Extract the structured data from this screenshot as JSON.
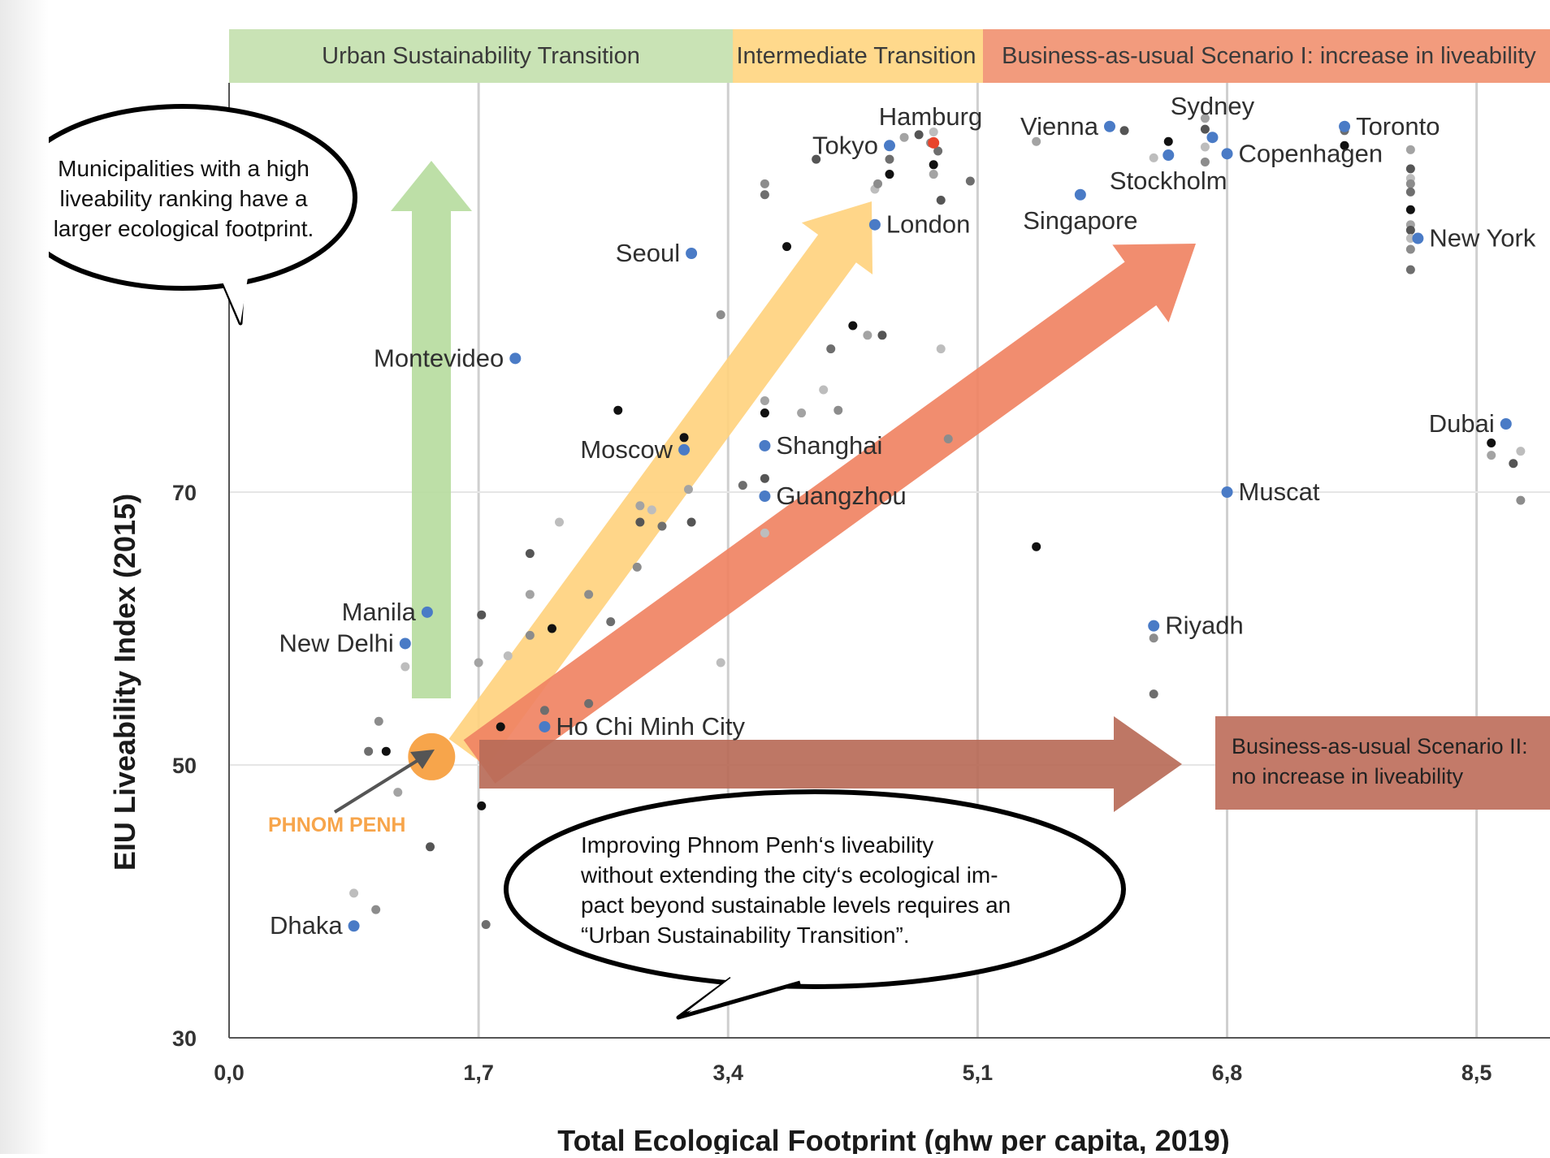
{
  "colors": {
    "transition_band": "#c9e3b5",
    "intermediate_band": "#ffd98c",
    "bau1_band": "#f29b7d",
    "bau2_band": "#c37a69",
    "green_arrow": "#b7dca0",
    "yellow_arrow": "#ffd37f",
    "orange_arrow": "#f08363",
    "brown_arrow": "#b96b58",
    "city_dot": "#4a7bc6",
    "hamburg": "#e8442b",
    "phnom_penh": "#f7a54b",
    "grid": "#cfcfcf"
  },
  "bands": {
    "transition": "Urban Sustainability Transition",
    "intermediate": "Intermediate Transition",
    "bau1": "Business-as-usual Scenario I: increase in liveability"
  },
  "bau2_box": {
    "line1": "Business-as-usual Scenario II:",
    "line2": "no increase in liveability"
  },
  "bubble_top": {
    "line1": "Municipalities with a high",
    "line2": "liveability ranking have a",
    "line3": "larger ecological footprint."
  },
  "bubble_bottom": {
    "line1": "Improving Phnom Penh‘s liveability",
    "line2": "without extending the city‘s ecological im-",
    "line3": "pact beyond sustainable levels requires an",
    "line4": "“Urban Sustainability Transition”."
  },
  "phnom_penh_label": "PHNOM PENH",
  "chart_data": {
    "type": "scatter",
    "xlabel": "Total Ecological Footprint (ghw per capita, 2019)",
    "ylabel": "EIU Liveability Index (2015)",
    "xlim": [
      0,
      9.0
    ],
    "ylim": [
      30,
      100
    ],
    "x_ticks": [
      "0,0",
      "1,7",
      "3,4",
      "5,1",
      "6,8",
      "8,5"
    ],
    "x_tick_values": [
      0,
      1.7,
      3.4,
      5.1,
      6.8,
      8.5
    ],
    "y_ticks": [
      "30",
      "50",
      "70"
    ],
    "y_tick_values": [
      30,
      50,
      70
    ],
    "grid": true,
    "labeled_cities": [
      {
        "name": "Hamburg",
        "x": 4.8,
        "y": 95.6
      },
      {
        "name": "Vienna",
        "x": 6.0,
        "y": 96.8
      },
      {
        "name": "Sydney",
        "x": 6.7,
        "y": 96.0
      },
      {
        "name": "Toronto",
        "x": 7.6,
        "y": 96.8
      },
      {
        "name": "Tokyo",
        "x": 4.5,
        "y": 95.4
      },
      {
        "name": "Copenhagen",
        "x": 6.8,
        "y": 94.8
      },
      {
        "name": "Stockholm",
        "x": 6.4,
        "y": 94.7
      },
      {
        "name": "London",
        "x": 4.4,
        "y": 89.6
      },
      {
        "name": "Singapore",
        "x": 5.8,
        "y": 91.8
      },
      {
        "name": "New York",
        "x": 8.1,
        "y": 88.6
      },
      {
        "name": "Seoul",
        "x": 3.15,
        "y": 87.5
      },
      {
        "name": "Montevideo",
        "x": 1.95,
        "y": 79.8
      },
      {
        "name": "Dubai",
        "x": 8.7,
        "y": 75.0
      },
      {
        "name": "Moscow",
        "x": 3.1,
        "y": 73.1
      },
      {
        "name": "Shanghai",
        "x": 3.65,
        "y": 73.4
      },
      {
        "name": "Guangzhou",
        "x": 3.65,
        "y": 69.7
      },
      {
        "name": "Muscat",
        "x": 6.8,
        "y": 70.0
      },
      {
        "name": "Manila",
        "x": 1.35,
        "y": 61.2
      },
      {
        "name": "New Delhi",
        "x": 1.2,
        "y": 58.9
      },
      {
        "name": "Riyadh",
        "x": 6.3,
        "y": 60.2
      },
      {
        "name": "Ho Chi Minh City",
        "x": 2.15,
        "y": 52.8
      },
      {
        "name": "Dhaka",
        "x": 0.85,
        "y": 38.2
      },
      {
        "name": "Phnom Penh",
        "x": 1.38,
        "y": 50.6
      }
    ],
    "unlabeled_points": [
      [
        1.2,
        57.2
      ],
      [
        1.02,
        53.2
      ],
      [
        0.95,
        51.0
      ],
      [
        1.07,
        51.0
      ],
      [
        1.15,
        48.0
      ],
      [
        1.37,
        44.0
      ],
      [
        0.85,
        40.6
      ],
      [
        1.0,
        39.4
      ],
      [
        1.75,
        38.3
      ],
      [
        1.72,
        47.0
      ],
      [
        1.7,
        57.5
      ],
      [
        1.72,
        61.0
      ],
      [
        1.9,
        58.0
      ],
      [
        2.05,
        59.5
      ],
      [
        2.15,
        54.0
      ],
      [
        2.2,
        60.0
      ],
      [
        2.05,
        62.5
      ],
      [
        2.05,
        65.5
      ],
      [
        2.25,
        67.8
      ],
      [
        2.45,
        62.5
      ],
      [
        2.6,
        60.5
      ],
      [
        2.65,
        76.0
      ],
      [
        2.8,
        69.0
      ],
      [
        2.8,
        67.8
      ],
      [
        2.88,
        68.7
      ],
      [
        2.78,
        64.5
      ],
      [
        2.95,
        67.5
      ],
      [
        3.1,
        74.0
      ],
      [
        3.13,
        70.2
      ],
      [
        3.15,
        67.8
      ],
      [
        3.35,
        57.5
      ],
      [
        3.35,
        83.0
      ],
      [
        3.5,
        70.5
      ],
      [
        3.65,
        75.8
      ],
      [
        3.65,
        76.7
      ],
      [
        3.65,
        71.0
      ],
      [
        3.65,
        67.0
      ],
      [
        3.65,
        92.6
      ],
      [
        3.65,
        91.8
      ],
      [
        3.8,
        88.0
      ],
      [
        3.9,
        75.8
      ],
      [
        4.0,
        94.4
      ],
      [
        4.05,
        77.5
      ],
      [
        4.15,
        76.0
      ],
      [
        4.1,
        80.5
      ],
      [
        4.25,
        82.2
      ],
      [
        4.35,
        81.5
      ],
      [
        4.45,
        81.5
      ],
      [
        4.4,
        92.2
      ],
      [
        4.42,
        92.6
      ],
      [
        4.5,
        94.4
      ],
      [
        4.5,
        93.3
      ],
      [
        4.6,
        96.0
      ],
      [
        4.7,
        96.2
      ],
      [
        4.8,
        96.4
      ],
      [
        4.78,
        95.6
      ],
      [
        4.83,
        95.0
      ],
      [
        4.8,
        94.0
      ],
      [
        4.8,
        93.3
      ],
      [
        4.85,
        91.4
      ],
      [
        4.85,
        80.5
      ],
      [
        4.9,
        73.9
      ],
      [
        5.05,
        92.8
      ],
      [
        5.5,
        66.0
      ],
      [
        5.5,
        95.7
      ],
      [
        6.1,
        96.5
      ],
      [
        6.3,
        94.5
      ],
      [
        6.3,
        59.3
      ],
      [
        6.3,
        55.2
      ],
      [
        6.4,
        95.7
      ],
      [
        6.65,
        97.4
      ],
      [
        6.65,
        96.6
      ],
      [
        6.65,
        95.3
      ],
      [
        6.65,
        94.2
      ],
      [
        7.6,
        96.5
      ],
      [
        7.6,
        95.4
      ],
      [
        8.05,
        95.1
      ],
      [
        8.05,
        93.7
      ],
      [
        8.05,
        93.0
      ],
      [
        8.05,
        92.6
      ],
      [
        8.05,
        92.0
      ],
      [
        8.05,
        90.7
      ],
      [
        8.05,
        89.6
      ],
      [
        8.05,
        89.2
      ],
      [
        8.05,
        88.6
      ],
      [
        8.05,
        87.8
      ],
      [
        8.05,
        86.3
      ],
      [
        8.6,
        73.6
      ],
      [
        8.6,
        72.7
      ],
      [
        8.75,
        72.1
      ],
      [
        8.8,
        73.0
      ],
      [
        8.8,
        69.4
      ],
      [
        2.45,
        54.5
      ],
      [
        1.85,
        52.8
      ]
    ]
  }
}
